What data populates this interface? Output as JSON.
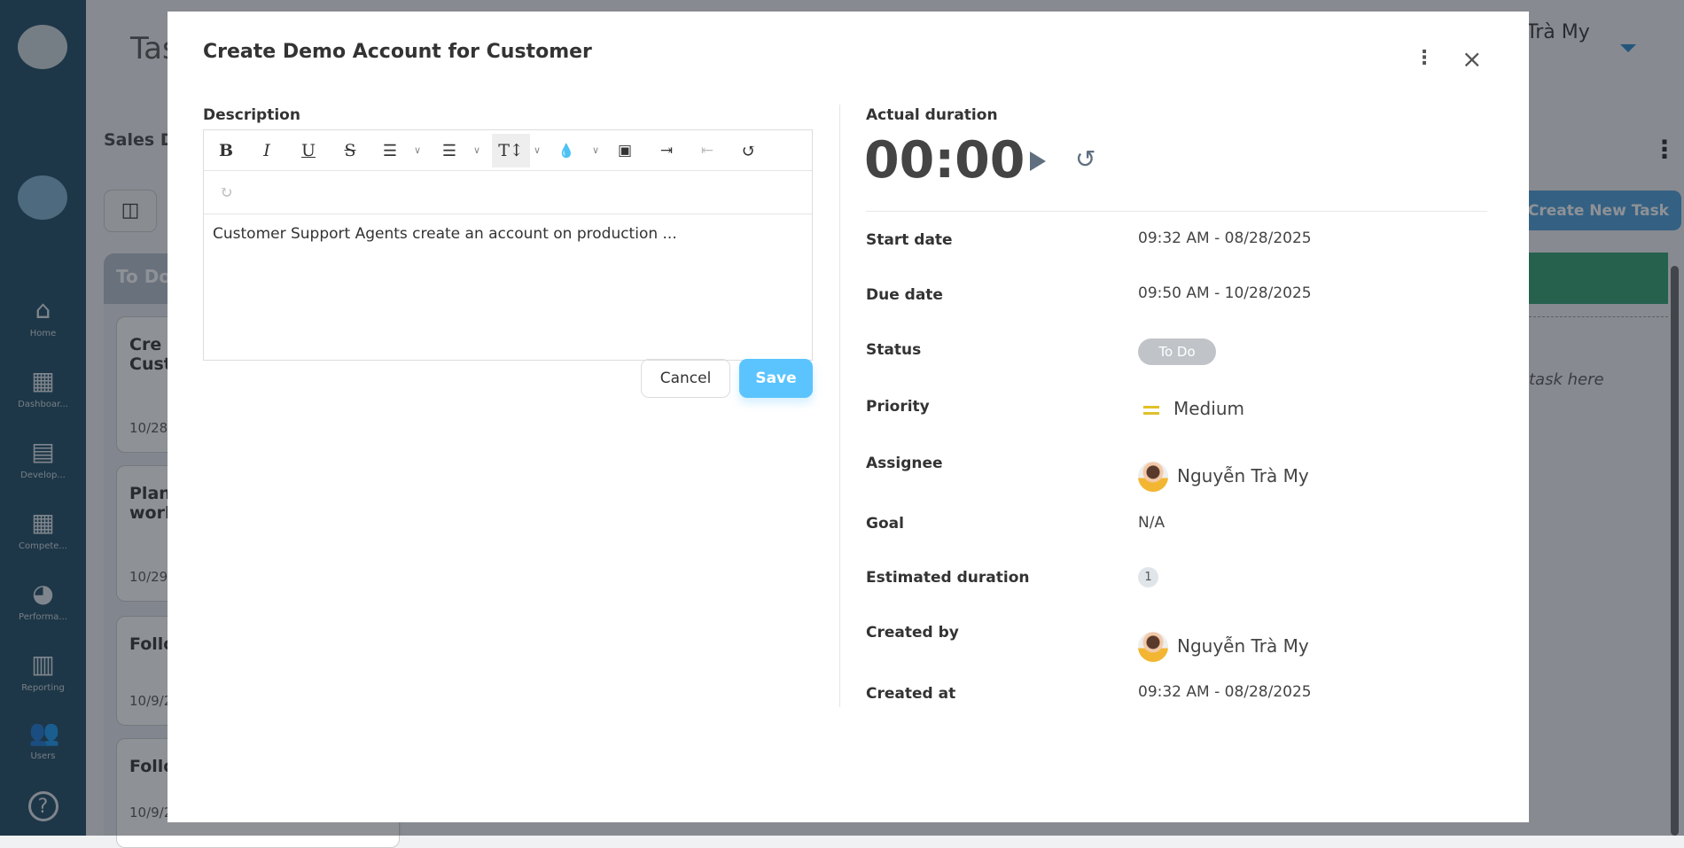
{
  "sidebar": {
    "items": [
      {
        "label": "Home",
        "icon": "home-icon"
      },
      {
        "label": "Dashboar...",
        "icon": "dashboard-icon"
      },
      {
        "label": "Develop...",
        "icon": "book-icon"
      },
      {
        "label": "Compete...",
        "icon": "grid-icon"
      },
      {
        "label": "Performa...",
        "icon": "pie-chart-icon"
      },
      {
        "label": "Reporting",
        "icon": "report-icon"
      },
      {
        "label": "Users",
        "icon": "users-icon"
      }
    ]
  },
  "page": {
    "title": "Tas",
    "board": "Sales D",
    "column": "To Do",
    "user": "Trà My",
    "create_task": "Create New Task",
    "drop_hint": "task here",
    "cards": [
      {
        "title": "Cre\nCust",
        "date": "10/28/"
      },
      {
        "title": "Plan\nwork",
        "date": "10/29/"
      },
      {
        "title": "Follo",
        "date": "10/9/2"
      },
      {
        "title": "Follo",
        "date": "10/9/2"
      }
    ]
  },
  "modal": {
    "title": "Create Demo Account for Customer",
    "description_label": "Description",
    "description_text": "Customer Support Agents create an account on production ...",
    "cancel": "Cancel",
    "save": "Save",
    "actual_duration_label": "Actual duration",
    "timer": "00:00",
    "fields": [
      {
        "label": "Start date",
        "value": "09:32 AM - 08/28/2025"
      },
      {
        "label": "Due date",
        "value": "09:50 AM - 10/28/2025"
      },
      {
        "label": "Status",
        "value": "To Do"
      },
      {
        "label": "Priority",
        "value": "Medium"
      },
      {
        "label": "Assignee",
        "value": "Nguyễn Trà My"
      },
      {
        "label": "Goal",
        "value": "N/A"
      },
      {
        "label": "Estimated duration",
        "value": "1"
      },
      {
        "label": "Created by",
        "value": "Nguyễn Trà My"
      },
      {
        "label": "Created at",
        "value": "09:32 AM - 08/28/2025"
      }
    ]
  },
  "colors": {
    "sidebar": "#1d4a63",
    "save": "#5bc4fe",
    "priority_medium": "#e0c12a",
    "status_todo": "#c0c4c8",
    "create_task": "#4a9fd8",
    "done_column": "#2f9e6e"
  }
}
